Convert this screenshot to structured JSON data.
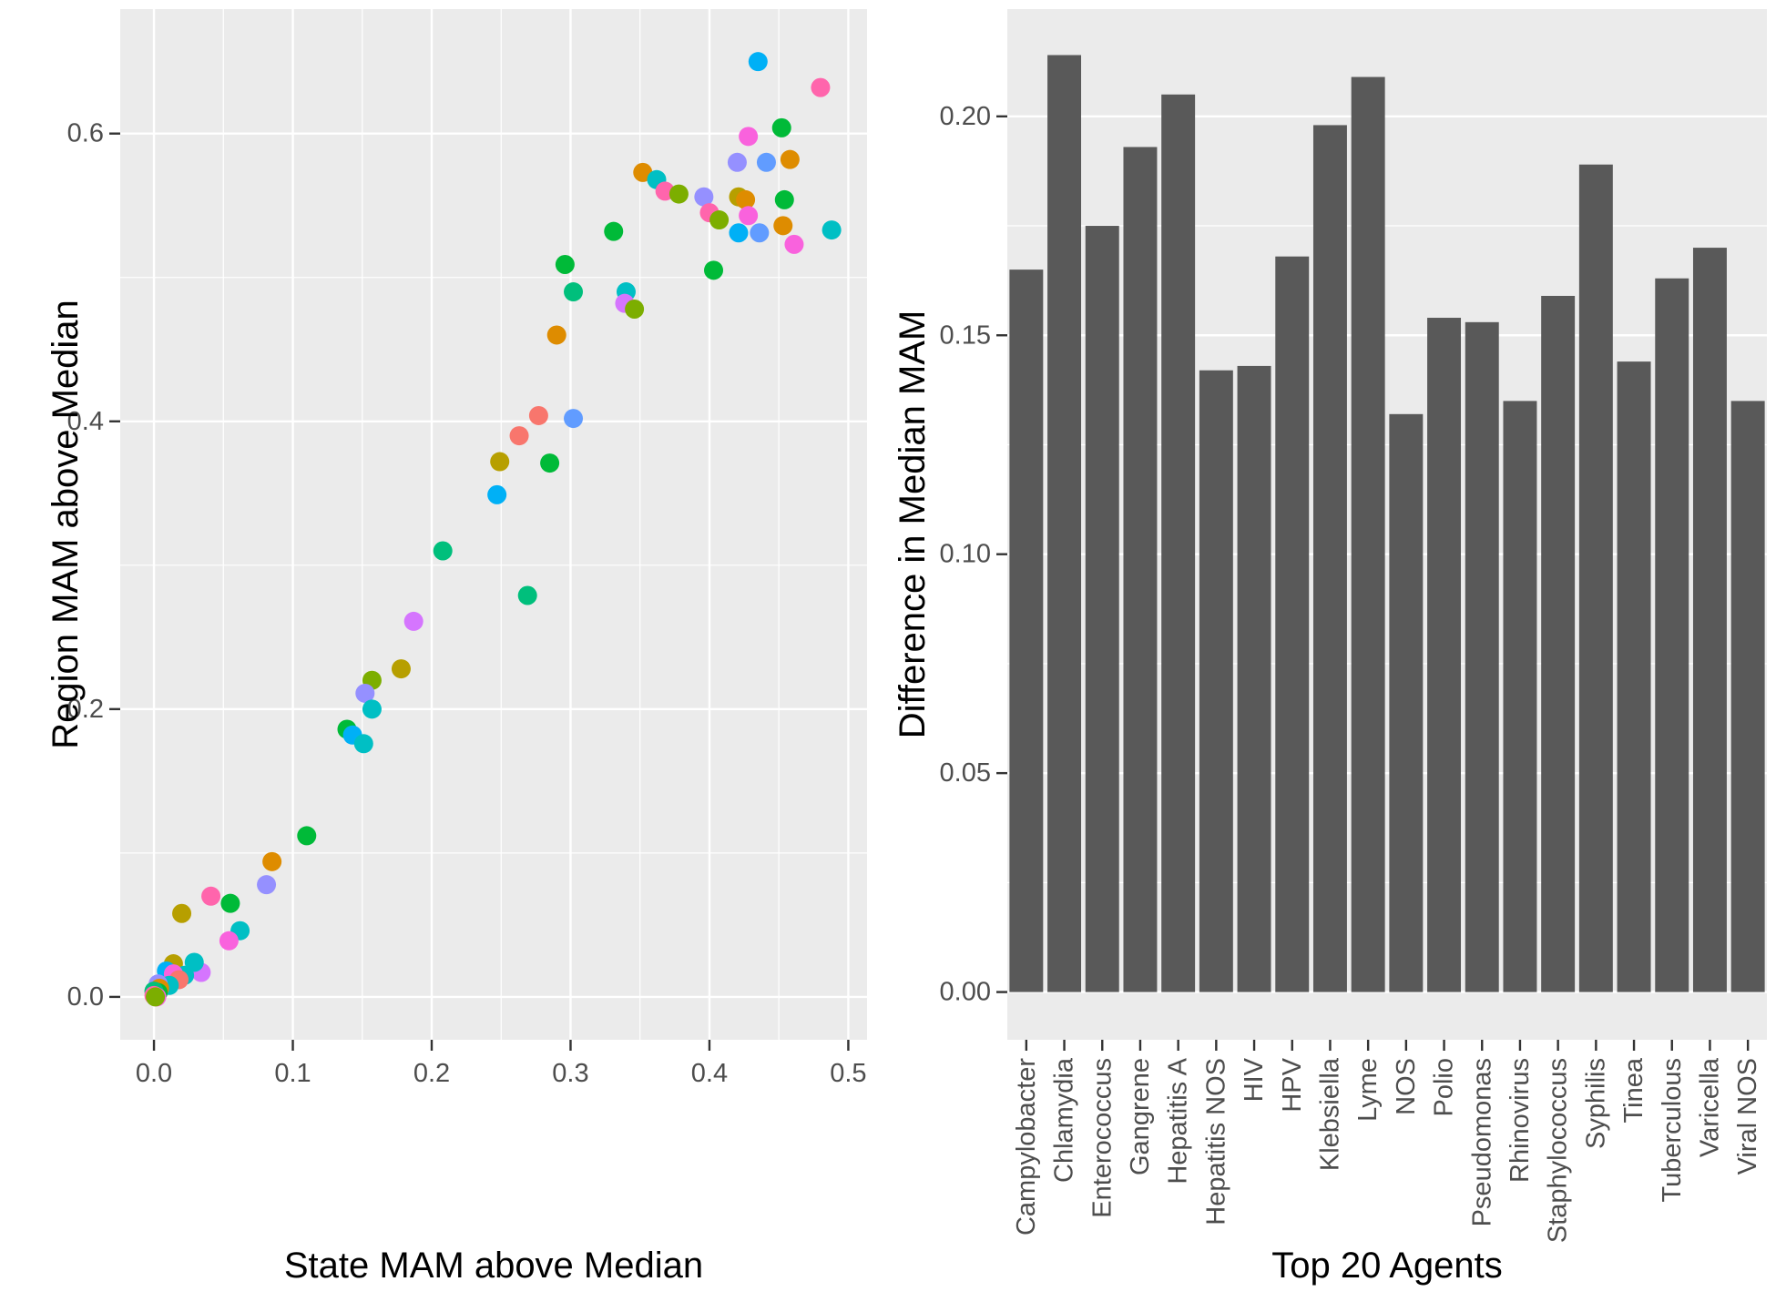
{
  "figure": {
    "background": "#ffffff",
    "panel_background": "#EBEBEB",
    "grid_color": "#ffffff",
    "tick_color": "#333333",
    "tick_label_color": "#4d4d4d",
    "axis_title_color": "#000000",
    "bar_color": "#595959",
    "point_radius": 10.5,
    "palette": {
      "salmon": "#F8766D",
      "orange": "#DE8C00",
      "darkyellow": "#B79F00",
      "olive": "#7CAE00",
      "green": "#00BA38",
      "seagreen": "#00BF7C",
      "cyan": "#00BFC4",
      "skyblue": "#00B0F6",
      "blue": "#619CFF",
      "purple": "#9590FF",
      "orchid": "#D575FE",
      "magenta": "#F962DD",
      "pink": "#FF65AC"
    }
  },
  "chart_data": [
    {
      "type": "scatter",
      "title": "",
      "xlabel": "State MAM above Median",
      "ylabel": "Region MAM above Median",
      "xlim": [
        -0.0243,
        0.5135
      ],
      "ylim": [
        -0.0298,
        0.6865
      ],
      "x_ticks": [
        0.0,
        0.1,
        0.2,
        0.3,
        0.4,
        0.5
      ],
      "x_tick_labels": [
        "0.0",
        "0.1",
        "0.2",
        "0.3",
        "0.4",
        "0.5"
      ],
      "x_minor_ticks": [
        0.05,
        0.15,
        0.25,
        0.35,
        0.45
      ],
      "y_ticks": [
        0.0,
        0.2,
        0.4,
        0.6
      ],
      "y_tick_labels": [
        "0.0",
        "0.2",
        "0.4",
        "0.6"
      ],
      "y_minor_ticks": [
        0.1,
        0.3,
        0.5
      ],
      "grid": true,
      "legend": "none",
      "points": [
        {
          "x": 0.435,
          "y": 0.65,
          "c": "skyblue"
        },
        {
          "x": 0.48,
          "y": 0.632,
          "c": "pink"
        },
        {
          "x": 0.452,
          "y": 0.604,
          "c": "green"
        },
        {
          "x": 0.428,
          "y": 0.598,
          "c": "magenta"
        },
        {
          "x": 0.42,
          "y": 0.58,
          "c": "purple"
        },
        {
          "x": 0.441,
          "y": 0.58,
          "c": "blue"
        },
        {
          "x": 0.458,
          "y": 0.582,
          "c": "orange"
        },
        {
          "x": 0.352,
          "y": 0.573,
          "c": "orange"
        },
        {
          "x": 0.362,
          "y": 0.568,
          "c": "cyan"
        },
        {
          "x": 0.368,
          "y": 0.56,
          "c": "pink"
        },
        {
          "x": 0.378,
          "y": 0.558,
          "c": "olive"
        },
        {
          "x": 0.396,
          "y": 0.556,
          "c": "purple"
        },
        {
          "x": 0.421,
          "y": 0.556,
          "c": "darkyellow"
        },
        {
          "x": 0.426,
          "y": 0.554,
          "c": "orange"
        },
        {
          "x": 0.454,
          "y": 0.554,
          "c": "green"
        },
        {
          "x": 0.4,
          "y": 0.545,
          "c": "pink"
        },
        {
          "x": 0.428,
          "y": 0.543,
          "c": "magenta"
        },
        {
          "x": 0.407,
          "y": 0.54,
          "c": "olive"
        },
        {
          "x": 0.421,
          "y": 0.531,
          "c": "skyblue"
        },
        {
          "x": 0.436,
          "y": 0.531,
          "c": "blue"
        },
        {
          "x": 0.453,
          "y": 0.536,
          "c": "orange"
        },
        {
          "x": 0.488,
          "y": 0.533,
          "c": "cyan"
        },
        {
          "x": 0.461,
          "y": 0.523,
          "c": "magenta"
        },
        {
          "x": 0.331,
          "y": 0.532,
          "c": "green"
        },
        {
          "x": 0.34,
          "y": 0.49,
          "c": "cyan"
        },
        {
          "x": 0.296,
          "y": 0.509,
          "c": "green"
        },
        {
          "x": 0.302,
          "y": 0.49,
          "c": "seagreen"
        },
        {
          "x": 0.403,
          "y": 0.505,
          "c": "green"
        },
        {
          "x": 0.339,
          "y": 0.482,
          "c": "orchid"
        },
        {
          "x": 0.346,
          "y": 0.478,
          "c": "olive"
        },
        {
          "x": 0.29,
          "y": 0.46,
          "c": "orange"
        },
        {
          "x": 0.277,
          "y": 0.404,
          "c": "salmon"
        },
        {
          "x": 0.302,
          "y": 0.402,
          "c": "blue"
        },
        {
          "x": 0.263,
          "y": 0.39,
          "c": "salmon"
        },
        {
          "x": 0.249,
          "y": 0.372,
          "c": "darkyellow"
        },
        {
          "x": 0.285,
          "y": 0.371,
          "c": "green"
        },
        {
          "x": 0.247,
          "y": 0.349,
          "c": "skyblue"
        },
        {
          "x": 0.208,
          "y": 0.31,
          "c": "seagreen"
        },
        {
          "x": 0.269,
          "y": 0.279,
          "c": "seagreen"
        },
        {
          "x": 0.187,
          "y": 0.261,
          "c": "orchid"
        },
        {
          "x": 0.178,
          "y": 0.228,
          "c": "darkyellow"
        },
        {
          "x": 0.157,
          "y": 0.22,
          "c": "olive"
        },
        {
          "x": 0.152,
          "y": 0.211,
          "c": "purple"
        },
        {
          "x": 0.157,
          "y": 0.2,
          "c": "cyan"
        },
        {
          "x": 0.139,
          "y": 0.186,
          "c": "green"
        },
        {
          "x": 0.143,
          "y": 0.182,
          "c": "skyblue"
        },
        {
          "x": 0.151,
          "y": 0.176,
          "c": "cyan"
        },
        {
          "x": 0.11,
          "y": 0.112,
          "c": "green"
        },
        {
          "x": 0.085,
          "y": 0.094,
          "c": "orange"
        },
        {
          "x": 0.081,
          "y": 0.078,
          "c": "purple"
        },
        {
          "x": 0.041,
          "y": 0.07,
          "c": "pink"
        },
        {
          "x": 0.055,
          "y": 0.065,
          "c": "green"
        },
        {
          "x": 0.02,
          "y": 0.058,
          "c": "darkyellow"
        },
        {
          "x": 0.062,
          "y": 0.046,
          "c": "cyan"
        },
        {
          "x": 0.054,
          "y": 0.039,
          "c": "magenta"
        },
        {
          "x": 0.034,
          "y": 0.017,
          "c": "orchid"
        },
        {
          "x": 0.029,
          "y": 0.024,
          "c": "cyan"
        },
        {
          "x": 0.014,
          "y": 0.023,
          "c": "darkyellow"
        },
        {
          "x": 0.009,
          "y": 0.018,
          "c": "skyblue"
        },
        {
          "x": 0.022,
          "y": 0.015,
          "c": "cyan"
        },
        {
          "x": 0.014,
          "y": 0.016,
          "c": "magenta"
        },
        {
          "x": 0.018,
          "y": 0.012,
          "c": "salmon"
        },
        {
          "x": 0.011,
          "y": 0.008,
          "c": "cyan"
        },
        {
          "x": 0.003,
          "y": 0.009,
          "c": "purple"
        },
        {
          "x": 0.004,
          "y": 0.006,
          "c": "orange"
        },
        {
          "x": 0.003,
          "y": 0.003,
          "c": "green"
        },
        {
          "x": 0.0,
          "y": 0.004,
          "c": "seagreen"
        },
        {
          "x": 0.002,
          "y": 0.0,
          "c": "magenta"
        },
        {
          "x": 0.0,
          "y": 0.001,
          "c": "pink"
        },
        {
          "x": 0.001,
          "y": 0.0,
          "c": "olive"
        }
      ]
    },
    {
      "type": "bar",
      "title": "",
      "xlabel": "Top 20 Agents",
      "ylabel": "Difference in Median MAM",
      "categories": [
        "Campylobacter",
        "Chlamydia",
        "Enterococcus",
        "Gangrene",
        "Hepatitis A",
        "Hepatitis NOS",
        "HIV",
        "HPV",
        "Klebsiella",
        "Lyme",
        "NOS",
        "Polio",
        "Pseudomonas",
        "Rhinovirus",
        "Staphylococcus",
        "Syphilis",
        "Tinea",
        "Tuberculous",
        "Varicella",
        "Viral NOS"
      ],
      "values": [
        0.165,
        0.214,
        0.175,
        0.193,
        0.205,
        0.142,
        0.143,
        0.168,
        0.198,
        0.209,
        0.132,
        0.154,
        0.153,
        0.135,
        0.159,
        0.189,
        0.144,
        0.163,
        0.17,
        0.135
      ],
      "ylim": [
        -0.0109,
        0.2245
      ],
      "y_ticks": [
        0.0,
        0.05,
        0.1,
        0.15,
        0.2
      ],
      "y_tick_labels": [
        "0.00",
        "0.05",
        "0.10",
        "0.15",
        "0.20"
      ],
      "y_minor_ticks": [
        0.025,
        0.075,
        0.125,
        0.175
      ],
      "grid": true,
      "legend": "none",
      "bar_fill": "#595959"
    }
  ]
}
